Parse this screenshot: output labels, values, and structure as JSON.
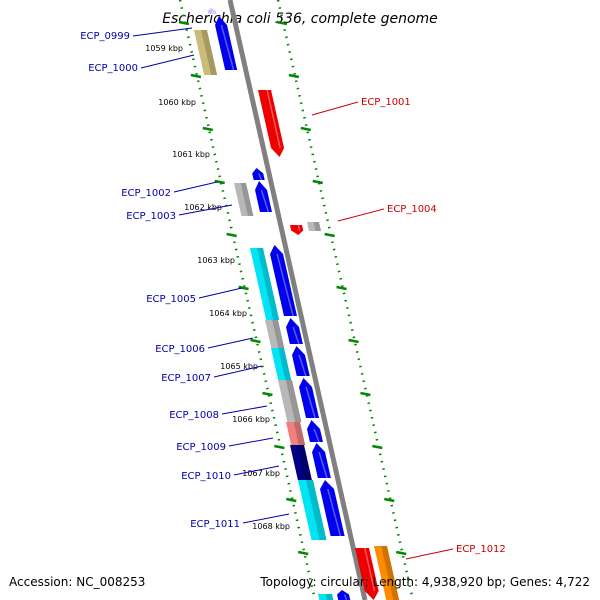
{
  "title": "Escherichia coli 536, complete genome",
  "footer": {
    "accession": "Accession: NC_008253",
    "summary": "Topology: circular; Length: 4,938,920 bp; Genes: 4,722"
  },
  "scale_labels": [
    "1059 kbp",
    "1060 kbp",
    "1061 kbp",
    "1062 kbp",
    "1063 kbp",
    "1064 kbp",
    "1065 kbp",
    "1066 kbp",
    "1067 kbp",
    "1068 kbp"
  ],
  "colors": {
    "label_blue": "#0000aa",
    "label_red": "#cc0000",
    "backbone": "#808080",
    "tick": "#008800",
    "cds_blue": "#0000ee",
    "cds_red": "#ee0000",
    "cyan": "#00e5f5",
    "gray": "#b8b8b8",
    "khaki": "#c8bc78",
    "pink": "#f08080",
    "navy": "#000080",
    "orange": "#ff8c00"
  },
  "gene_labels": [
    {
      "text": "ECP_0999",
      "strand": "reverse"
    },
    {
      "text": "ECP_1000",
      "strand": "reverse"
    },
    {
      "text": "ECP_1001",
      "strand": "forward"
    },
    {
      "text": "ECP_1002",
      "strand": "reverse"
    },
    {
      "text": "ECP_1003",
      "strand": "reverse"
    },
    {
      "text": "ECP_1004",
      "strand": "forward"
    },
    {
      "text": "ECP_1005",
      "strand": "reverse"
    },
    {
      "text": "ECP_1006",
      "strand": "reverse"
    },
    {
      "text": "ECP_1007",
      "strand": "reverse"
    },
    {
      "text": "ECP_1008",
      "strand": "reverse"
    },
    {
      "text": "ECP_1009",
      "strand": "reverse"
    },
    {
      "text": "ECP_1010",
      "strand": "reverse"
    },
    {
      "text": "ECP_1011",
      "strand": "reverse"
    },
    {
      "text": "ECP_1012",
      "strand": "forward"
    }
  ]
}
